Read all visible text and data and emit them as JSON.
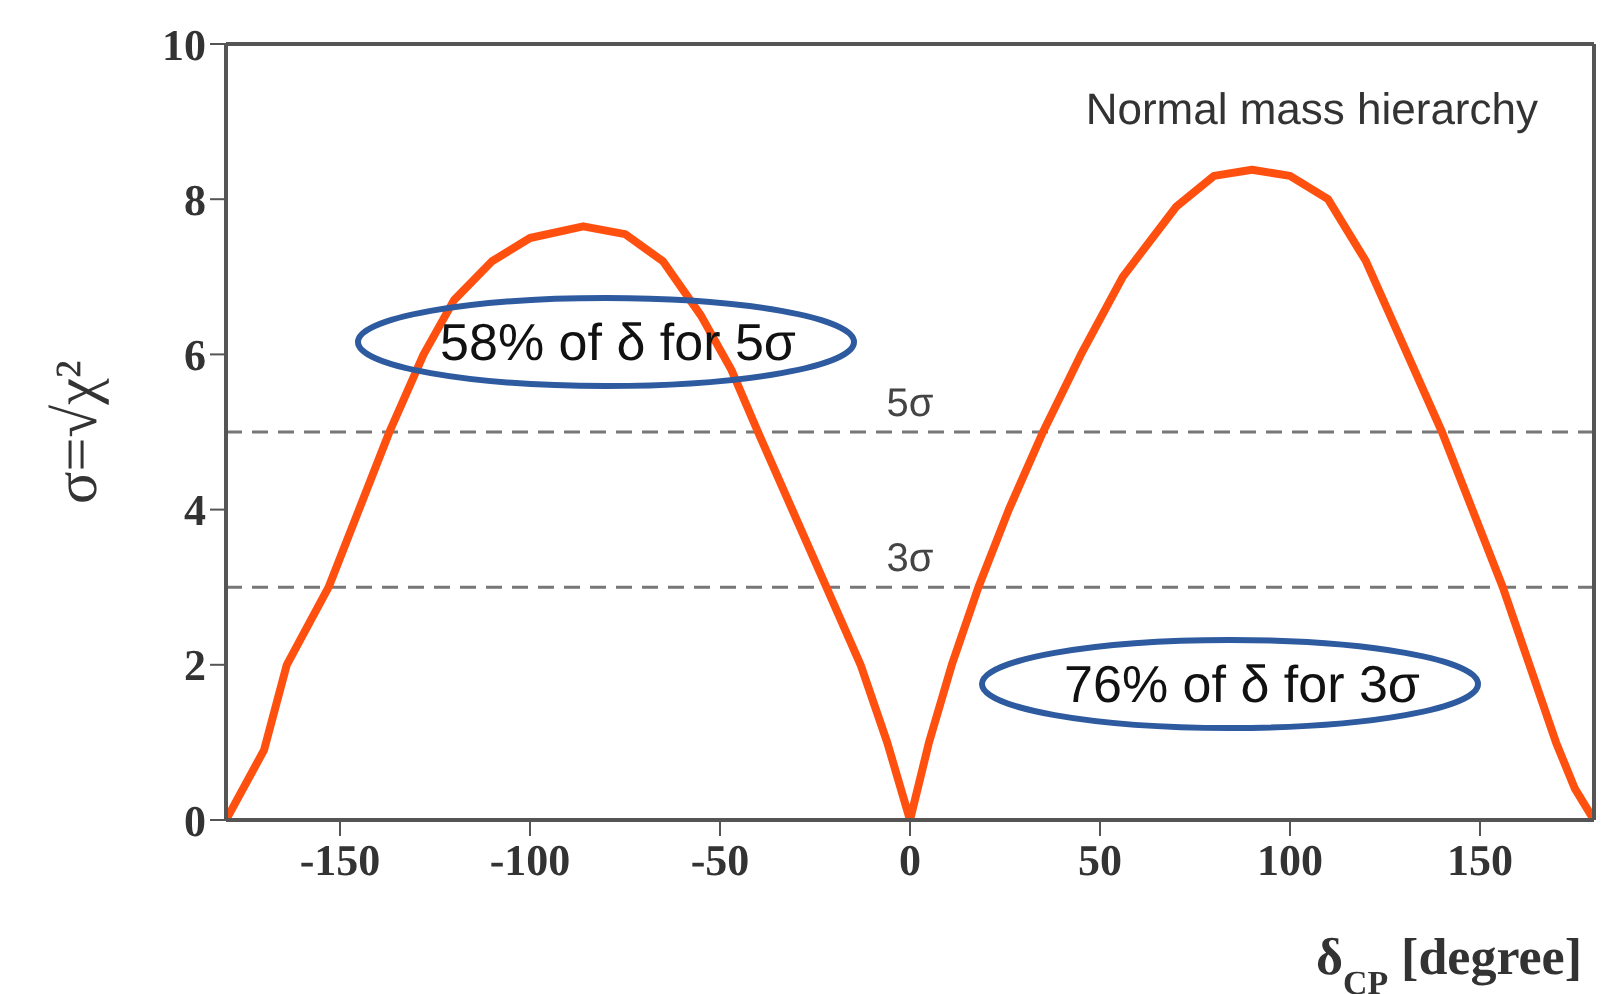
{
  "chart_data": {
    "type": "line",
    "xlabel": "δ$_{CP}$ [degree]",
    "ylabel": "σ=√χ²",
    "x": [
      -180,
      -170,
      -164,
      -153,
      -145,
      -137,
      -128,
      -120,
      -110,
      -100,
      -86,
      -75,
      -65,
      -55,
      -47,
      -40,
      -31,
      -22,
      -13,
      -6,
      0,
      5,
      11,
      18,
      26,
      35,
      45,
      56,
      70,
      80,
      90,
      100,
      110,
      120,
      130,
      140,
      148,
      156,
      163,
      170,
      175,
      180
    ],
    "series": [
      {
        "color": "#ff5010",
        "values": [
          0,
          0.9,
          2,
          3,
          4,
          5,
          6,
          6.7,
          7.2,
          7.5,
          7.65,
          7.55,
          7.2,
          6.5,
          5.8,
          5,
          4,
          3,
          2,
          1,
          0,
          1,
          2,
          3,
          4,
          5,
          6,
          7,
          7.9,
          8.3,
          8.38,
          8.3,
          8,
          7.2,
          6.1,
          5,
          4,
          3,
          2,
          1,
          0.4,
          0
        ]
      }
    ],
    "xlim": [
      -180,
      180
    ],
    "xticks": [
      -150,
      -100,
      -50,
      0,
      50,
      100,
      150
    ],
    "ylim": [
      0,
      10
    ],
    "yticks": [
      0,
      2,
      4,
      6,
      8,
      10
    ],
    "marker": "none",
    "line_style": "solid",
    "ref_lines": [
      {
        "axis": "y",
        "value": 5,
        "label": "5σ",
        "color": "#777777",
        "line_style": "dashed"
      },
      {
        "axis": "y",
        "value": 3,
        "label": "3σ",
        "color": "#777777",
        "line_style": "dashed"
      }
    ],
    "annotations": [
      "Normal mass hierarchy",
      "58% of δ for 5σ",
      "76% of δ for 3σ"
    ]
  }
}
